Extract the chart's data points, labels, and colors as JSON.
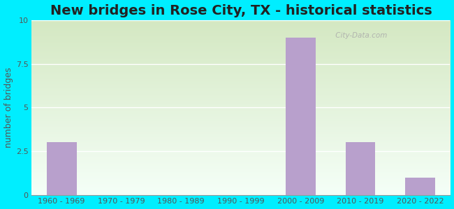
{
  "title": "New bridges in Rose City, TX - historical statistics",
  "categories": [
    "1960 - 1969",
    "1970 - 1979",
    "1980 - 1989",
    "1990 - 1999",
    "2000 - 2009",
    "2010 - 2019",
    "2020 - 2022"
  ],
  "values": [
    3,
    0,
    0,
    0,
    9,
    3,
    1
  ],
  "bar_color": "#b8a0cc",
  "ylabel": "number of bridges",
  "ylim": [
    0,
    10
  ],
  "yticks": [
    0,
    2.5,
    5,
    7.5,
    10
  ],
  "ytick_labels": [
    "0",
    "2.5",
    "5",
    "7.5",
    "10"
  ],
  "outer_bg": "#00eeff",
  "plot_bg_topleft": "#d4e8c2",
  "plot_bg_bottomright": "#f5fff8",
  "title_fontsize": 14,
  "axis_label_fontsize": 9,
  "tick_fontsize": 8,
  "watermark_text": " City-Data.com",
  "bar_width": 0.5
}
